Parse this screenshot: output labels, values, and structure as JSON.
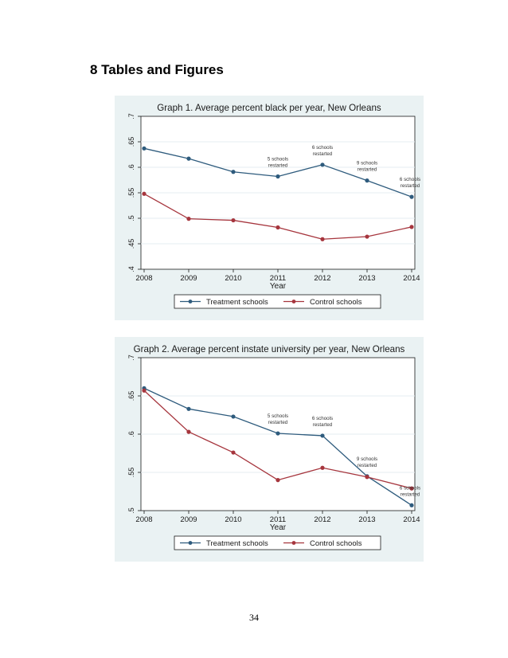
{
  "heading": "8 Tables and Figures",
  "page_number": "34",
  "colors": {
    "treatment": "#2e5b7d",
    "control": "#a6353d",
    "plot_bg": "#ffffff",
    "outer_bg": "#eaf2f3"
  },
  "chart_data": [
    {
      "type": "line",
      "title": "Graph 1. Average percent black per year, New Orleans",
      "xlabel": "Year",
      "ylabel": "",
      "x": [
        2008,
        2009,
        2010,
        2011,
        2012,
        2013,
        2014
      ],
      "x_ticks": [
        "2008",
        "2009",
        "2010",
        "2011",
        "2012",
        "2013",
        "2014"
      ],
      "ylim": [
        0.4,
        0.7
      ],
      "y_ticks": [
        ".4",
        ".45",
        ".5",
        ".55",
        ".6",
        ".65",
        ".7"
      ],
      "y_tick_values": [
        0.4,
        0.45,
        0.5,
        0.55,
        0.6,
        0.65,
        0.7
      ],
      "series": [
        {
          "name": "Treatment schools",
          "values": [
            0.637,
            0.617,
            0.591,
            0.582,
            0.605,
            0.574,
            0.542
          ]
        },
        {
          "name": "Control schools",
          "values": [
            0.548,
            0.499,
            0.496,
            0.482,
            0.459,
            0.464,
            0.483
          ]
        }
      ],
      "annotations": [
        {
          "lines": [
            "5 schools",
            "restarted"
          ],
          "x": 2011,
          "y": 0.582
        },
        {
          "lines": [
            "6 schools",
            "restarted"
          ],
          "x": 2012,
          "y": 0.605
        },
        {
          "lines": [
            "9 schools",
            "restarted"
          ],
          "x": 2013,
          "y": 0.574
        },
        {
          "lines": [
            "6 schools",
            "restarted"
          ],
          "x": 2014,
          "y": 0.542
        }
      ],
      "legend": [
        "Treatment schools",
        "Control schools"
      ]
    },
    {
      "type": "line",
      "title": "Graph 2. Average percent instate university per year, New Orleans",
      "xlabel": "Year",
      "ylabel": "",
      "x": [
        2008,
        2009,
        2010,
        2011,
        2012,
        2013,
        2014
      ],
      "x_ticks": [
        "2008",
        "2009",
        "2010",
        "2011",
        "2012",
        "2013",
        "2014"
      ],
      "ylim": [
        0.5,
        0.7
      ],
      "y_ticks": [
        ".5",
        ".55",
        ".6",
        ".65",
        ".7"
      ],
      "y_tick_values": [
        0.5,
        0.55,
        0.6,
        0.65,
        0.7
      ],
      "series": [
        {
          "name": "Treatment schools",
          "values": [
            0.66,
            0.633,
            0.623,
            0.601,
            0.598,
            0.545,
            0.507
          ]
        },
        {
          "name": "Control schools",
          "values": [
            0.657,
            0.603,
            0.576,
            0.54,
            0.556,
            0.544,
            0.529
          ]
        }
      ],
      "annotations": [
        {
          "lines": [
            "5 schools",
            "restarted"
          ],
          "x": 2011,
          "y": 0.601
        },
        {
          "lines": [
            "6 schools",
            "restarted"
          ],
          "x": 2012,
          "y": 0.598
        },
        {
          "lines": [
            "9 schools",
            "restarted"
          ],
          "x": 2013,
          "y": 0.545
        },
        {
          "lines": [
            "6 schools",
            "restarted"
          ],
          "x": 2014,
          "y": 0.507
        }
      ],
      "legend": [
        "Treatment schools",
        "Control schools"
      ]
    }
  ]
}
